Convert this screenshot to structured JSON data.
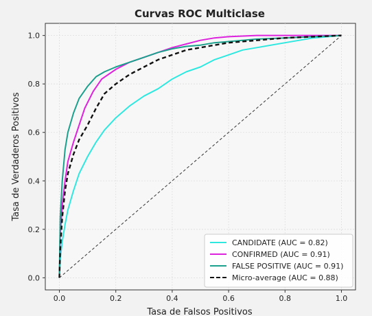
{
  "chart_data": {
    "type": "line",
    "title": "Curvas ROC Multiclase",
    "xlabel": "Tasa de Falsos Positivos",
    "ylabel": "Tasa de Verdaderos Positivos",
    "xlim": [
      -0.05,
      1.05
    ],
    "ylim": [
      -0.05,
      1.05
    ],
    "xticks": [
      "0.0",
      "0.2",
      "0.4",
      "0.6",
      "0.8",
      "1.0"
    ],
    "yticks": [
      "0.0",
      "0.2",
      "0.4",
      "0.6",
      "0.8",
      "1.0"
    ],
    "grid": true,
    "legend_position": "lower-right",
    "series": [
      {
        "name": "CANDIDATE (AUC = 0.82)",
        "color": "#2ee8e0",
        "style": "solid",
        "x": [
          0,
          0.003,
          0.01,
          0.02,
          0.03,
          0.05,
          0.07,
          0.1,
          0.13,
          0.16,
          0.2,
          0.25,
          0.3,
          0.35,
          0.4,
          0.45,
          0.5,
          0.55,
          0.6,
          0.65,
          0.7,
          0.8,
          0.9,
          1.0
        ],
        "y": [
          0,
          0.08,
          0.15,
          0.22,
          0.28,
          0.36,
          0.43,
          0.5,
          0.56,
          0.61,
          0.66,
          0.71,
          0.75,
          0.78,
          0.82,
          0.85,
          0.87,
          0.9,
          0.92,
          0.94,
          0.95,
          0.97,
          0.99,
          1.0
        ]
      },
      {
        "name": "CONFIRMED (AUC = 0.91)",
        "color": "#dd22dd",
        "style": "solid",
        "x": [
          0,
          0.003,
          0.01,
          0.02,
          0.03,
          0.05,
          0.07,
          0.09,
          0.12,
          0.15,
          0.2,
          0.25,
          0.3,
          0.35,
          0.4,
          0.45,
          0.5,
          0.55,
          0.6,
          0.7,
          0.8,
          0.9,
          1.0
        ],
        "y": [
          0,
          0.18,
          0.3,
          0.4,
          0.48,
          0.56,
          0.63,
          0.7,
          0.77,
          0.82,
          0.86,
          0.89,
          0.91,
          0.93,
          0.95,
          0.965,
          0.98,
          0.99,
          0.995,
          1.0,
          1.0,
          1.0,
          1.0
        ]
      },
      {
        "name": "FALSE POSITIVE (AUC = 0.91)",
        "color": "#1aa08c",
        "style": "solid",
        "x": [
          0,
          0.003,
          0.01,
          0.02,
          0.03,
          0.05,
          0.07,
          0.1,
          0.13,
          0.16,
          0.2,
          0.25,
          0.3,
          0.35,
          0.4,
          0.45,
          0.5,
          0.55,
          0.6,
          0.7,
          0.8,
          0.9,
          1.0
        ],
        "y": [
          0,
          0.25,
          0.4,
          0.53,
          0.6,
          0.68,
          0.74,
          0.79,
          0.83,
          0.85,
          0.87,
          0.89,
          0.91,
          0.93,
          0.945,
          0.955,
          0.96,
          0.97,
          0.975,
          0.985,
          0.99,
          0.995,
          1.0
        ]
      },
      {
        "name": "Micro-average (AUC = 0.88)",
        "color": "#111111",
        "style": "dashed",
        "x": [
          0,
          0.003,
          0.01,
          0.02,
          0.03,
          0.05,
          0.07,
          0.1,
          0.13,
          0.16,
          0.2,
          0.25,
          0.3,
          0.35,
          0.4,
          0.45,
          0.5,
          0.55,
          0.6,
          0.7,
          0.8,
          0.9,
          1.0
        ],
        "y": [
          0,
          0.12,
          0.25,
          0.36,
          0.43,
          0.51,
          0.57,
          0.63,
          0.7,
          0.76,
          0.8,
          0.84,
          0.87,
          0.9,
          0.92,
          0.94,
          0.95,
          0.96,
          0.97,
          0.98,
          0.99,
          0.995,
          1.0
        ]
      }
    ],
    "reference_line": {
      "x": [
        0,
        1
      ],
      "y": [
        0,
        1
      ],
      "color": "#333333",
      "style": "dashed"
    }
  }
}
